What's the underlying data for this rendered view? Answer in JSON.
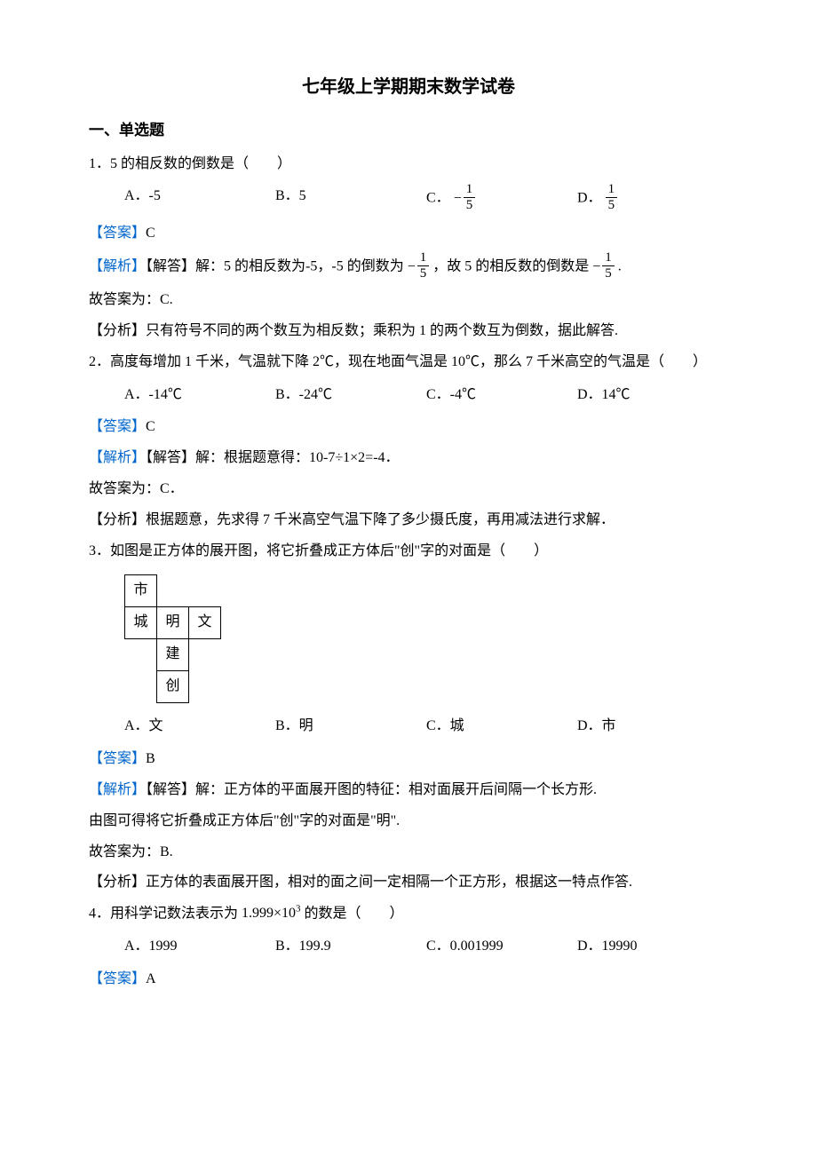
{
  "title": "七年级上学期期末数学试卷",
  "section1": "一、单选题",
  "q1": {
    "text": "1．5 的相反数的倒数是（　　）",
    "optA": "A．-5",
    "optB": "B．5",
    "optC_prefix": "C．",
    "optC_num": "1",
    "optC_den": "5",
    "optD_prefix": "D．",
    "optD_num": "1",
    "optD_den": "5",
    "answer_label": "【答案】",
    "answer": "C",
    "analysis_label": "【解析】",
    "analysis_sub": "【解答】",
    "analysis_text1": "解：5 的相反数为-5，-5 的倒数为 ",
    "analysis_frac1_num": "1",
    "analysis_frac1_den": "5",
    "analysis_text2": " ，故 5 的相反数的倒数是 ",
    "analysis_frac2_num": "1",
    "analysis_frac2_den": "5",
    "analysis_text3": " .",
    "conclusion": "故答案为：C.",
    "fenxi_label": "【分析】",
    "fenxi": "只有符号不同的两个数互为相反数；乘积为 1 的两个数互为倒数，据此解答."
  },
  "q2": {
    "text": "2．高度每增加 1 千米，气温就下降 2℃，现在地面气温是 10℃，那么 7 千米高空的气温是（　　）",
    "optA": "A．-14℃",
    "optB": "B．-24℃",
    "optC": "C．-4℃",
    "optD": "D．14℃",
    "answer_label": "【答案】",
    "answer": "C",
    "analysis_label": "【解析】",
    "analysis_sub": "【解答】",
    "analysis_text": "解：根据题意得：10-7÷1×2=-4．",
    "conclusion": "故答案为：C．",
    "fenxi_label": "【分析】",
    "fenxi": "根据题意，先求得 7 千米高空气温下降了多少摄氏度，再用减法进行求解．"
  },
  "q3": {
    "text": "3．如图是正方体的展开图，将它折叠成正方体后\"创\"字的对面是（　　）",
    "net": {
      "r1c1": "市",
      "r2c1": "城",
      "r2c2": "明",
      "r2c3": "文",
      "r3c2": "建",
      "r4c2": "创"
    },
    "optA": "A．文",
    "optB": "B．明",
    "optC": "C．城",
    "optD": "D．市",
    "answer_label": "【答案】",
    "answer": "B",
    "analysis_label": "【解析】",
    "analysis_sub": "【解答】",
    "analysis_text": "解：正方体的平面展开图的特征：相对面展开后间隔一个长方形.",
    "analysis_text2": "由图可得将它折叠成正方体后\"创\"字的对面是\"明\".",
    "conclusion": "故答案为：B.",
    "fenxi_label": "【分析】",
    "fenxi": "正方体的表面展开图，相对的面之间一定相隔一个正方形，根据这一特点作答."
  },
  "q4": {
    "text_prefix": "4．用科学记数法表示为 ",
    "sci_base": "1.999×10",
    "sci_exp": "3",
    "text_suffix": "  的数是（　　）",
    "optA": "A．1999",
    "optB": "B．199.9",
    "optC": "C．0.001999",
    "optD": "D．19990",
    "answer_label": "【答案】",
    "answer": "A"
  }
}
